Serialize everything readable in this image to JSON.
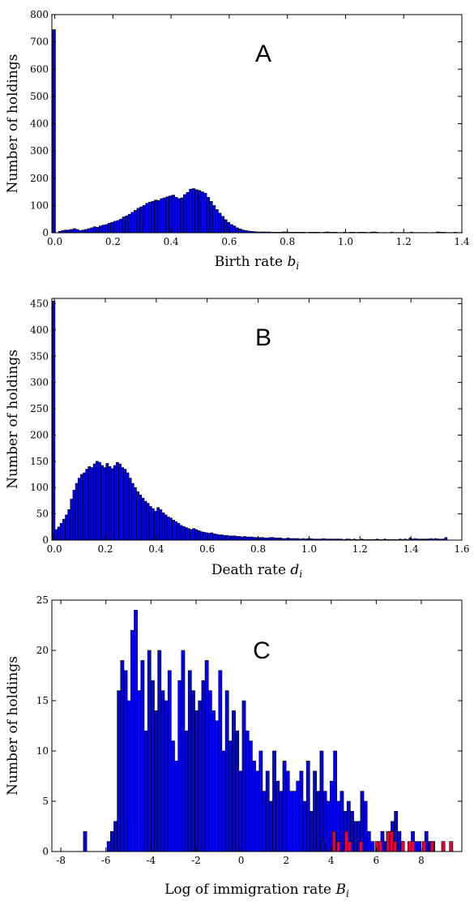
{
  "chart_data": [
    {
      "type": "bar",
      "panel_label": "A",
      "xlabel": "Birth rate",
      "xlabel_var": "b",
      "xlabel_sub": "i",
      "ylabel": "Number of holdings",
      "xlim": [
        -0.01,
        1.4
      ],
      "ylim": [
        0,
        800
      ],
      "xticks": [
        0.0,
        0.2,
        0.4,
        0.6,
        0.8,
        1.0,
        1.2,
        1.4
      ],
      "xtick_labels": [
        "0.0",
        "0.2",
        "0.4",
        "0.6",
        "0.8",
        "1.0",
        "1.2",
        "1.4"
      ],
      "yticks": [
        0,
        100,
        200,
        300,
        400,
        500,
        600,
        700,
        800
      ],
      "ytick_labels": [
        "0",
        "100",
        "200",
        "300",
        "400",
        "500",
        "600",
        "700",
        "800"
      ],
      "bin_start": -0.0075,
      "bin_width": 0.01,
      "color": "#0000ee",
      "series": [
        {
          "values": [
            745,
            0,
            5,
            8,
            10,
            10,
            12,
            15,
            12,
            8,
            10,
            12,
            15,
            18,
            22,
            20,
            25,
            28,
            30,
            35,
            38,
            42,
            45,
            50,
            58,
            62,
            68,
            75,
            82,
            90,
            95,
            100,
            108,
            112,
            115,
            120,
            118,
            125,
            128,
            132,
            135,
            138,
            130,
            125,
            128,
            140,
            148,
            160,
            162,
            158,
            155,
            150,
            145,
            130,
            115,
            100,
            85,
            72,
            60,
            48,
            38,
            30,
            25,
            18,
            14,
            10,
            8,
            6,
            5,
            4,
            3,
            3,
            3,
            3,
            3,
            2,
            2,
            2,
            2,
            3,
            3,
            2,
            2,
            2,
            2,
            2,
            2,
            1,
            2,
            2,
            2,
            2,
            1,
            2,
            3,
            2,
            2,
            2,
            1,
            1,
            2,
            1,
            2,
            2,
            1,
            2,
            2,
            2,
            1,
            2,
            3,
            2,
            1,
            1,
            1,
            0,
            2,
            1,
            1,
            1,
            1,
            1,
            1,
            2,
            1,
            1,
            1,
            1,
            1,
            0,
            1,
            1,
            3,
            2,
            2,
            1,
            1,
            1,
            2,
            1,
            1
          ]
        }
      ]
    },
    {
      "type": "bar",
      "panel_label": "B",
      "xlabel": "Death rate",
      "xlabel_var": "d",
      "xlabel_sub": "i",
      "ylabel": "Number of holdings",
      "xlim": [
        -0.01,
        1.6
      ],
      "ylim": [
        0,
        460
      ],
      "xticks": [
        0.0,
        0.2,
        0.4,
        0.6,
        0.8,
        1.0,
        1.2,
        1.4,
        1.6
      ],
      "xtick_labels": [
        "0.0",
        "0.2",
        "0.4",
        "0.6",
        "0.8",
        "1.0",
        "1.2",
        "1.4",
        "1.6"
      ],
      "yticks": [
        0,
        50,
        100,
        150,
        200,
        250,
        300,
        350,
        400,
        450
      ],
      "ytick_labels": [
        "0",
        "50",
        "100",
        "150",
        "200",
        "250",
        "300",
        "350",
        "400",
        "450"
      ],
      "bin_start": -0.0075,
      "bin_width": 0.01,
      "color": "#0000ee",
      "series": [
        {
          "values": [
            455,
            20,
            25,
            32,
            40,
            48,
            58,
            78,
            95,
            108,
            118,
            125,
            128,
            135,
            140,
            138,
            145,
            150,
            148,
            142,
            138,
            146,
            140,
            136,
            142,
            148,
            145,
            138,
            135,
            128,
            118,
            108,
            100,
            92,
            86,
            80,
            74,
            70,
            64,
            60,
            55,
            62,
            58,
            52,
            48,
            44,
            42,
            38,
            35,
            32,
            28,
            26,
            24,
            22,
            20,
            22,
            20,
            18,
            16,
            15,
            14,
            13,
            14,
            12,
            11,
            10,
            10,
            9,
            9,
            8,
            8,
            8,
            7,
            7,
            6,
            7,
            6,
            6,
            6,
            5,
            5,
            5,
            5,
            4,
            4,
            5,
            5,
            4,
            4,
            4,
            3,
            3,
            4,
            3,
            3,
            3,
            3,
            2,
            3,
            2,
            3,
            3,
            2,
            2,
            2,
            2,
            3,
            2,
            2,
            2,
            2,
            2,
            2,
            2,
            1,
            2,
            2,
            1,
            2,
            1,
            1,
            2,
            1,
            1,
            1,
            1,
            1,
            2,
            1,
            1,
            2,
            1,
            1,
            1,
            1,
            1,
            2,
            1,
            2,
            1,
            4,
            2,
            3,
            2,
            2,
            2,
            2,
            2,
            3,
            2,
            3,
            2,
            2,
            2,
            5
          ]
        }
      ]
    },
    {
      "type": "bar",
      "panel_label": "C",
      "xlabel": "Log of immigration rate",
      "xlabel_var": "B",
      "xlabel_sub": "i",
      "ylabel": "Number of holdings",
      "xlim": [
        -8.4,
        9.8
      ],
      "ylim": [
        0,
        25
      ],
      "xticks": [
        -8,
        -6,
        -4,
        -2,
        0,
        2,
        4,
        6,
        8
      ],
      "xtick_labels": [
        "-8",
        "-6",
        "-4",
        "-2",
        "0",
        "2",
        "4",
        "6",
        "8"
      ],
      "yticks": [
        0,
        5,
        10,
        15,
        20,
        25
      ],
      "ytick_labels": [
        "0",
        "5",
        "10",
        "15",
        "20",
        "25"
      ],
      "bin_start": -7.0,
      "bin_width": 0.15,
      "colors": {
        "primary": "#0000ee",
        "secondary": "#e8003c"
      },
      "series": [
        {
          "values": [
            2,
            0,
            0,
            0,
            0,
            0,
            0,
            1,
            2,
            3,
            16,
            19,
            18,
            15,
            22,
            24,
            16,
            19,
            12,
            20,
            17,
            14,
            20,
            16,
            15,
            18,
            11,
            9,
            17,
            20,
            12,
            18,
            16,
            14,
            15,
            17,
            19,
            16,
            14,
            13,
            18,
            10,
            16,
            11,
            14,
            12,
            8,
            15,
            12,
            11,
            9,
            8,
            10,
            6,
            8,
            5,
            10,
            7,
            6,
            9,
            8,
            6,
            6,
            7,
            8,
            5,
            9,
            4,
            8,
            6,
            10,
            6,
            5,
            7,
            10,
            5,
            6,
            4,
            5,
            4,
            3,
            3,
            6,
            5,
            2,
            1,
            0,
            0,
            2,
            1,
            2,
            3,
            4,
            2,
            1,
            0,
            0,
            2,
            1,
            1,
            0,
            2,
            1,
            1
          ]
        },
        {
          "values": [
            2,
            0,
            0,
            0,
            0,
            0,
            0,
            1,
            2,
            3,
            16,
            19,
            18,
            15,
            22,
            24,
            16,
            19,
            12,
            20,
            17,
            14,
            20,
            16,
            15,
            18,
            11,
            9,
            17,
            20,
            12,
            18,
            16,
            14,
            15,
            17,
            19,
            16,
            14,
            13,
            18,
            10,
            16,
            11,
            14,
            12,
            8,
            15,
            12,
            11,
            9,
            8,
            10,
            6,
            8,
            5,
            10,
            7,
            6,
            9,
            8,
            6,
            6,
            7,
            8,
            5,
            9,
            4,
            8,
            6,
            10,
            6,
            5,
            7,
            10,
            5,
            6,
            4,
            5,
            4,
            3,
            3,
            6,
            5,
            2,
            1,
            0,
            0,
            2,
            1,
            2,
            3,
            4,
            2,
            1,
            0,
            0,
            2,
            1,
            1,
            0,
            2,
            1,
            1
          ]
        }
      ],
      "series_values": {
        "blue": [
          2,
          0,
          0,
          0,
          0,
          0,
          0,
          1,
          2,
          3,
          16,
          19,
          18,
          15,
          22,
          24,
          16,
          19,
          12,
          20,
          17,
          14,
          20,
          16,
          15,
          18,
          11,
          9,
          17,
          20,
          12,
          18,
          16,
          14,
          15,
          17,
          19,
          16,
          14,
          13,
          18,
          10,
          16,
          11,
          14,
          12,
          8,
          15,
          12,
          11,
          9,
          8,
          10,
          6,
          8,
          5,
          10,
          7,
          6,
          9,
          8,
          6,
          6,
          7,
          8,
          5,
          9,
          4,
          8,
          6,
          10,
          6,
          5,
          7,
          10,
          5,
          6,
          4,
          5,
          4,
          3,
          3,
          6,
          5,
          2,
          1,
          0,
          0,
          2,
          1,
          2,
          3,
          4,
          2,
          1,
          0,
          0,
          2,
          1,
          1,
          0,
          2,
          1,
          1
        ],
        "blue_extra": [
          {
            "x": 3.55,
            "value": 1
          },
          {
            "x": 4.85,
            "value": 1
          }
        ],
        "red": [
          {
            "x": 4.05,
            "value": 2
          },
          {
            "x": 4.25,
            "value": 1
          },
          {
            "x": 4.6,
            "value": 2
          },
          {
            "x": 4.75,
            "value": 1
          },
          {
            "x": 5.25,
            "value": 1
          },
          {
            "x": 5.95,
            "value": 1
          },
          {
            "x": 6.1,
            "value": 1
          },
          {
            "x": 6.45,
            "value": 2
          },
          {
            "x": 6.6,
            "value": 2
          },
          {
            "x": 6.75,
            "value": 1
          },
          {
            "x": 7.1,
            "value": 1
          },
          {
            "x": 7.4,
            "value": 1
          },
          {
            "x": 7.55,
            "value": 1
          },
          {
            "x": 8.05,
            "value": 1
          },
          {
            "x": 8.4,
            "value": 1
          },
          {
            "x": 8.9,
            "value": 1
          },
          {
            "x": 9.25,
            "value": 1
          }
        ]
      }
    }
  ]
}
